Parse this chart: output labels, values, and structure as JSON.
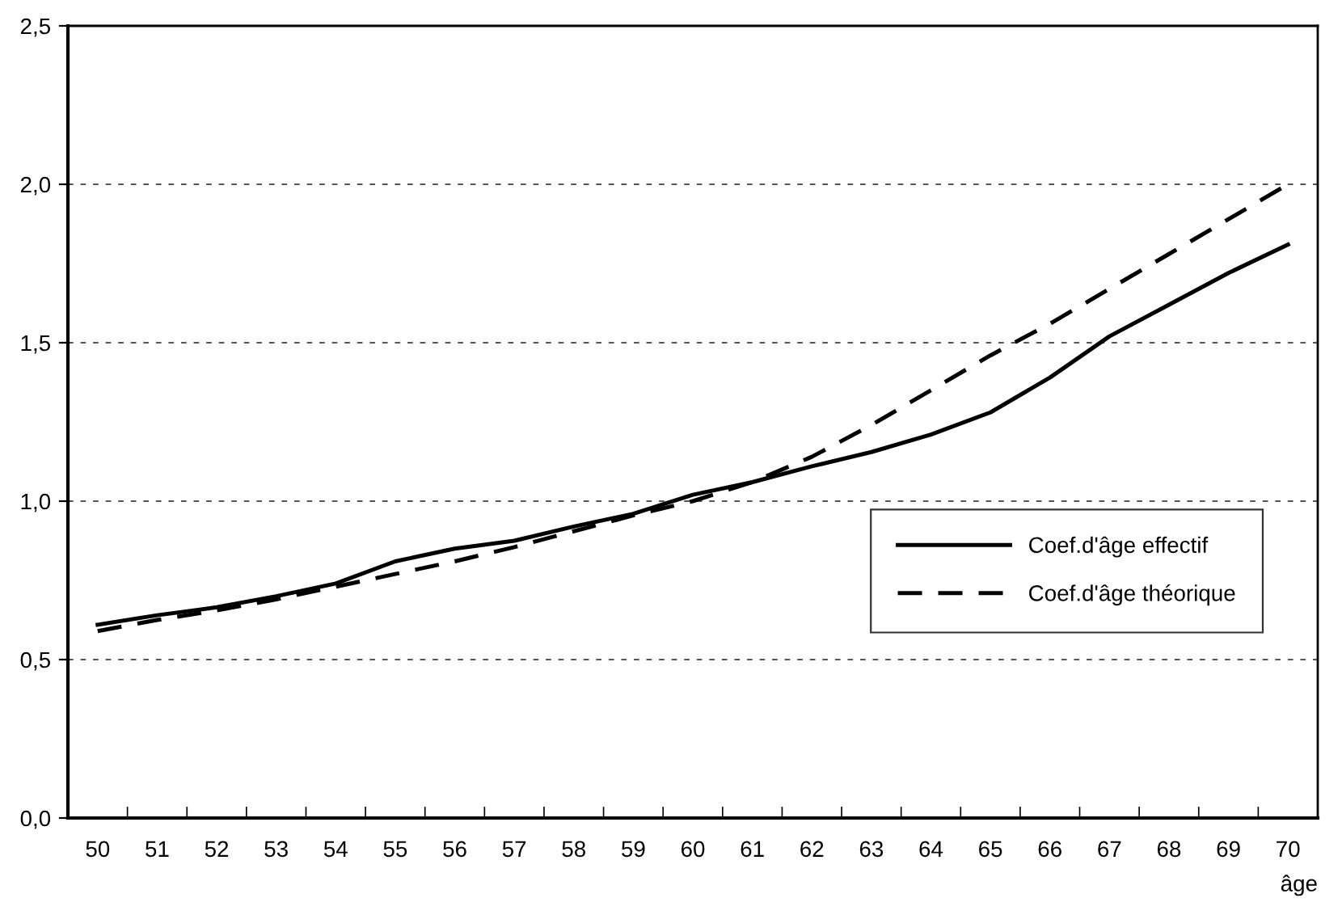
{
  "chart_data": {
    "type": "line",
    "xlabel": "âge",
    "categories": [
      "50",
      "51",
      "52",
      "53",
      "54",
      "55",
      "56",
      "57",
      "58",
      "59",
      "60",
      "61",
      "62",
      "63",
      "64",
      "65",
      "66",
      "67",
      "68",
      "69",
      "70"
    ],
    "series": [
      {
        "name": "Coef.d'âge effectif",
        "color": "#000000",
        "line_style": "solid",
        "values": [
          0.61,
          0.64,
          0.665,
          0.7,
          0.74,
          0.81,
          0.85,
          0.875,
          0.92,
          0.96,
          1.02,
          1.06,
          1.11,
          1.155,
          1.21,
          1.28,
          1.39,
          1.52,
          1.62,
          1.72,
          1.81
        ]
      },
      {
        "name": "Coef.d'âge théorique",
        "color": "#000000",
        "line_style": "dashed",
        "values": [
          0.59,
          0.625,
          0.655,
          0.69,
          0.73,
          0.77,
          0.81,
          0.855,
          0.905,
          0.955,
          1.0,
          1.06,
          1.14,
          1.24,
          1.35,
          1.46,
          1.56,
          1.67,
          1.78,
          1.89,
          2.0
        ]
      }
    ],
    "ylim": [
      0,
      2.5
    ],
    "yticks": [
      {
        "value": 0,
        "label": "0,0"
      },
      {
        "value": 0.5,
        "label": "0,5"
      },
      {
        "value": 1.0,
        "label": "1,0"
      },
      {
        "value": 1.5,
        "label": "1,5"
      },
      {
        "value": 2.0,
        "label": "2,0"
      },
      {
        "value": 2.5,
        "label": "2,5"
      }
    ],
    "grid": "y",
    "legend": "lower right",
    "marker": "none"
  }
}
